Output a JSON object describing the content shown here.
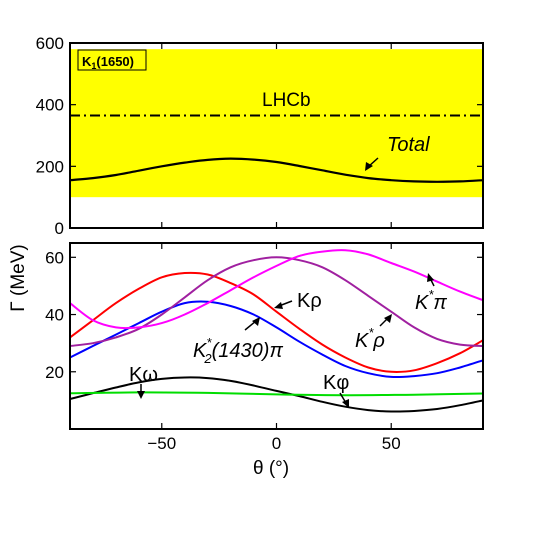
{
  "chart_data": [
    {
      "type": "line",
      "panel": "top",
      "box_label": "K",
      "box_label_sub": "1",
      "box_label_suffix": "(1650)",
      "ylim": [
        0,
        600
      ],
      "yticks": [
        0,
        200,
        400,
        600
      ],
      "band": {
        "from": 100,
        "to": 580,
        "color": "#ffff00"
      },
      "lhcb": {
        "label": "LHCb",
        "value": 365
      },
      "series": [
        {
          "name": "Total",
          "color": "#000000",
          "x": [
            -90,
            -80,
            -70,
            -60,
            -50,
            -40,
            -30,
            -20,
            -10,
            0,
            10,
            20,
            30,
            40,
            50,
            60,
            70,
            80,
            90
          ],
          "y": [
            155,
            162,
            172,
            186,
            200,
            212,
            221,
            225,
            222,
            214,
            201,
            187,
            173,
            162,
            155,
            151,
            150,
            151,
            155
          ]
        }
      ]
    },
    {
      "type": "line",
      "panel": "bottom",
      "xlim": [
        -90,
        90
      ],
      "ylim": [
        0,
        65
      ],
      "xticks": [
        -50,
        0,
        50
      ],
      "yticks": [
        20,
        40,
        60
      ],
      "xlabel": "θ (°)",
      "ylabel": "Γ (MeV)",
      "series": [
        {
          "name": "Kρ",
          "color": "#ff0000",
          "x": [
            -90,
            -80,
            -70,
            -60,
            -50,
            -40,
            -30,
            -20,
            -10,
            0,
            10,
            20,
            30,
            40,
            50,
            60,
            70,
            80,
            90
          ],
          "y": [
            32,
            38,
            44,
            49,
            53,
            54.5,
            54,
            51,
            47,
            41,
            35,
            29.5,
            25,
            21.5,
            20,
            20.5,
            23,
            26.5,
            31
          ]
        },
        {
          "name": "K*2(1430)π",
          "color": "#0000ff",
          "x": [
            -90,
            -80,
            -70,
            -60,
            -50,
            -40,
            -30,
            -20,
            -10,
            0,
            10,
            20,
            30,
            40,
            50,
            60,
            70,
            80,
            90
          ],
          "y": [
            25,
            29,
            33,
            37,
            41,
            44,
            44.5,
            43,
            40,
            35.5,
            30.5,
            26,
            22,
            19.5,
            18.2,
            18.5,
            19.5,
            21.5,
            24
          ]
        },
        {
          "name": "K*ρ",
          "color": "#a020a0",
          "x": [
            -90,
            -80,
            -70,
            -60,
            -50,
            -40,
            -30,
            -20,
            -10,
            0,
            10,
            20,
            30,
            40,
            50,
            60,
            70,
            80,
            90
          ],
          "y": [
            29,
            30,
            32,
            35,
            40,
            46,
            52,
            56.5,
            59,
            60,
            59,
            56.5,
            52,
            46.5,
            41,
            35.5,
            31.5,
            29.5,
            29
          ]
        },
        {
          "name": "K*π",
          "color": "#ff00ff",
          "x": [
            -90,
            -80,
            -70,
            -60,
            -50,
            -40,
            -30,
            -20,
            -10,
            0,
            10,
            20,
            30,
            40,
            50,
            60,
            70,
            80,
            90
          ],
          "y": [
            44,
            38,
            35.5,
            35.5,
            37,
            40,
            44,
            48.5,
            53,
            57,
            60.5,
            62,
            62.5,
            61,
            58,
            55,
            51.5,
            48,
            45
          ]
        },
        {
          "name": "Kω",
          "color": "#000000",
          "x": [
            -90,
            -80,
            -70,
            -60,
            -50,
            -40,
            -30,
            -20,
            -10,
            0,
            10,
            20,
            30,
            40,
            50,
            60,
            70,
            80,
            90
          ],
          "y": [
            10.5,
            12.5,
            14.5,
            16.3,
            17.5,
            18,
            17.8,
            16.8,
            15.2,
            13.3,
            11.5,
            9.5,
            7.8,
            6.6,
            6.1,
            6.3,
            7,
            8.3,
            10
          ]
        },
        {
          "name": "Kφ",
          "color": "#00dd00",
          "x": [
            -90,
            -60,
            -30,
            0,
            30,
            60,
            90
          ],
          "y": [
            12.5,
            12.8,
            12.6,
            12.1,
            11.8,
            12,
            12.4
          ]
        }
      ]
    }
  ],
  "annotations": {
    "total": "Total",
    "k_rho": "Kρ",
    "k2_main": "K",
    "k2_sup": "*",
    "k2_sub": "2",
    "k2_rest": "(1430)π",
    "kstar_rho_k": "K",
    "kstar_rho_sup": "*",
    "kstar_rho_rest": "ρ",
    "kstar_pi_k": "K",
    "kstar_pi_sup": "*",
    "kstar_pi_rest": "π",
    "k_omega": "Kω",
    "k_phi": "Kφ"
  }
}
